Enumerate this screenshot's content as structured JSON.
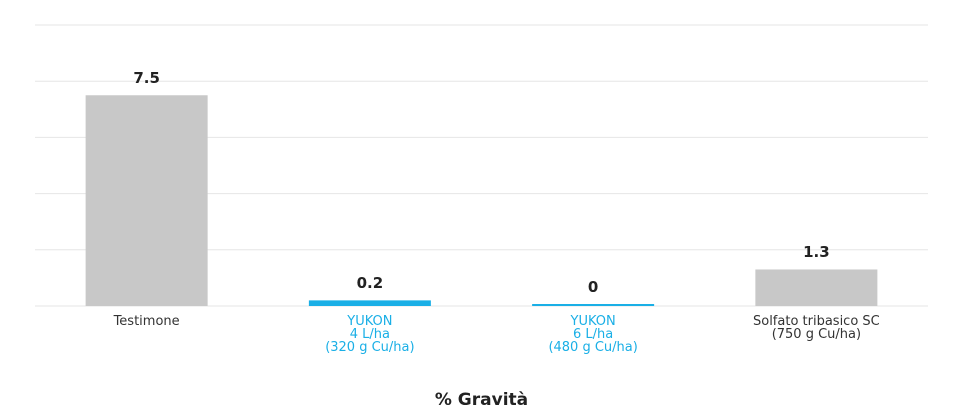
{
  "chart_data": {
    "type": "bar",
    "x_label": "% Gravità",
    "categories": [
      "Testimone",
      "YUKON\n4 L/ha\n(320 g  Cu/ha)",
      "YUKON\n6 L/ha\n(480 g  Cu/ha)",
      "Solfato tribasico SC\n(750 g Cu/ha)"
    ],
    "values": [
      7.5,
      0.2,
      0,
      1.3
    ],
    "colors": [
      "#c8c8c8",
      "#1aafe6",
      "#1aafe6",
      "#c8c8c8"
    ],
    "label_colors": [
      "#333333",
      "#1aafe6",
      "#1aafe6",
      "#333333"
    ],
    "ylim": [
      0,
      10
    ],
    "yticks": [
      0,
      2,
      4,
      6,
      8,
      10
    ],
    "grid": true
  }
}
